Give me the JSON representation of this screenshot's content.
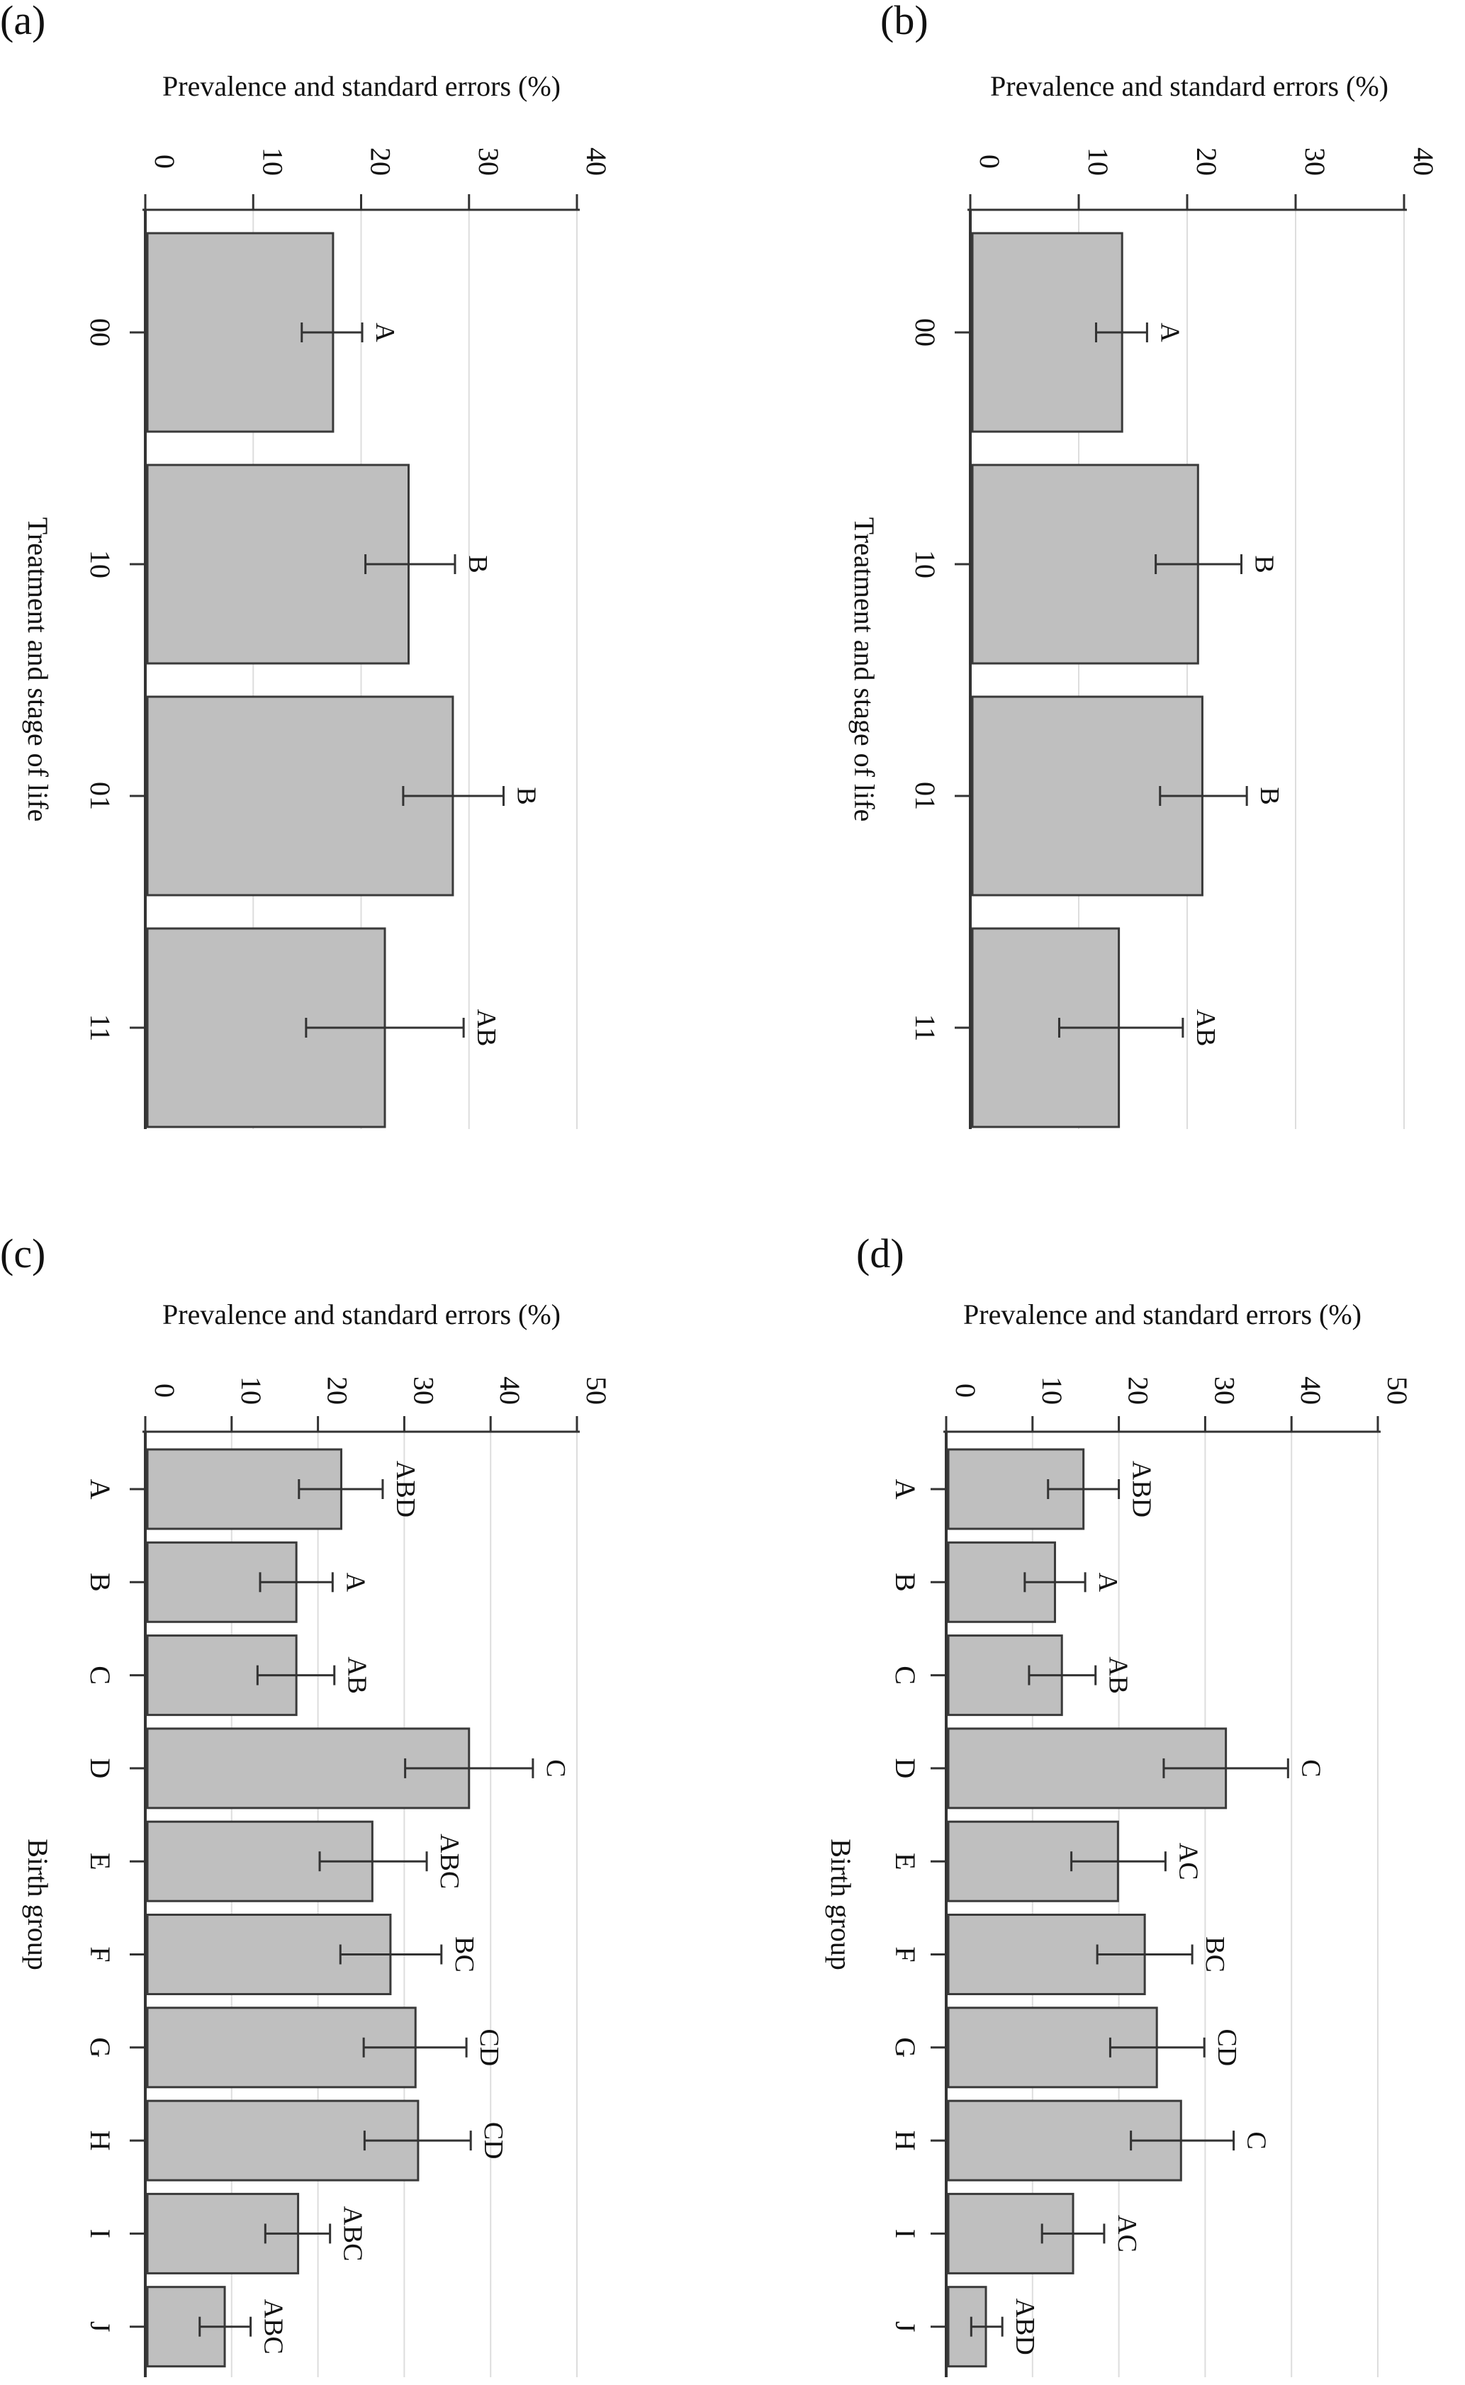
{
  "chart_data": [
    {
      "type": "bar",
      "panel_label": "(a)",
      "title": "Prevalence and standard errors (%)",
      "xlabel": "Treatment and stage of life",
      "ylabel": "Prevalence and standard errors (%)",
      "ylim": [
        0,
        40
      ],
      "ticks": [
        "0",
        "10",
        "20",
        "30",
        "40"
      ],
      "tick_values": [
        0,
        10,
        20,
        30,
        40
      ],
      "categories": [
        "00",
        "10",
        "01",
        "11"
      ],
      "values": [
        17.4,
        24.4,
        28.5,
        22.2
      ],
      "err_low": [
        14.5,
        20.4,
        23.9,
        14.9
      ],
      "err_high": [
        20.1,
        28.7,
        33.2,
        29.5
      ],
      "letters": [
        "A",
        "B",
        "B",
        "AB"
      ],
      "grid": true,
      "orientation": "rotated 90° clockwise"
    },
    {
      "type": "bar",
      "panel_label": "(b)",
      "title": "Prevalence and standard errors (%)",
      "xlabel": "Treatment and stage of life",
      "ylabel": "Prevalence and standard errors (%)",
      "ylim": [
        0,
        40
      ],
      "ticks": [
        "0",
        "10",
        "20",
        "30",
        "40"
      ],
      "tick_values": [
        0,
        10,
        20,
        30,
        40
      ],
      "categories": [
        "00",
        "10",
        "01",
        "11"
      ],
      "values": [
        14.0,
        21.0,
        21.4,
        13.7
      ],
      "err_low": [
        11.6,
        17.1,
        17.5,
        8.2
      ],
      "err_high": [
        16.3,
        25.0,
        25.5,
        19.6
      ],
      "letters": [
        "A",
        "B",
        "B",
        "AB"
      ],
      "grid": true,
      "orientation": "rotated 90° clockwise"
    },
    {
      "type": "bar",
      "panel_label": "(c)",
      "title": "Prevalence and standard errors (%)",
      "xlabel": "Birth group",
      "ylabel": "Prevalence and standard errors (%)",
      "ylim": [
        0,
        50
      ],
      "ticks": [
        "0",
        "10",
        "20",
        "30",
        "40",
        "50"
      ],
      "tick_values": [
        0,
        10,
        20,
        30,
        40,
        50
      ],
      "categories": [
        "A",
        "B",
        "C",
        "D",
        "E",
        "F",
        "G",
        "H",
        "I",
        "J"
      ],
      "values": [
        22.7,
        17.5,
        17.5,
        37.5,
        26.3,
        28.4,
        31.3,
        31.6,
        17.7,
        9.2
      ],
      "err_low": [
        17.8,
        13.3,
        13.0,
        30.1,
        20.2,
        22.6,
        25.3,
        25.4,
        13.9,
        6.3
      ],
      "err_high": [
        27.5,
        21.7,
        21.9,
        44.9,
        32.6,
        34.3,
        37.2,
        37.7,
        21.4,
        12.2
      ],
      "letters": [
        "ABD",
        "A",
        "AB",
        "C",
        "ABC",
        "BC",
        "CD",
        "CD",
        "ABC",
        "ABC"
      ],
      "grid": true,
      "orientation": "rotated 90° clockwise"
    },
    {
      "type": "bar",
      "panel_label": "(d)",
      "title": "Prevalence and standard errors (%)",
      "xlabel": "Birth group",
      "ylabel": "Prevalence and standard errors (%)",
      "ylim": [
        0,
        50
      ],
      "ticks": [
        "0",
        "10",
        "20",
        "30",
        "40",
        "50"
      ],
      "tick_values": [
        0,
        10,
        20,
        30,
        40,
        50
      ],
      "categories": [
        "A",
        "B",
        "C",
        "D",
        "E",
        "F",
        "G",
        "H",
        "I",
        "J"
      ],
      "values": [
        15.9,
        12.6,
        13.4,
        32.4,
        19.9,
        23.0,
        24.4,
        27.2,
        14.7,
        4.6
      ],
      "err_low": [
        11.8,
        9.1,
        9.6,
        25.2,
        14.5,
        17.5,
        19.0,
        21.4,
        11.1,
        2.9
      ],
      "err_high": [
        20.0,
        16.1,
        17.3,
        39.6,
        25.4,
        28.5,
        29.9,
        33.3,
        18.3,
        6.5
      ],
      "letters": [
        "ABD",
        "A",
        "AB",
        "C",
        "AC",
        "BC",
        "CD",
        "C",
        "AC",
        "ABD"
      ],
      "grid": true,
      "orientation": "rotated 90° clockwise"
    }
  ],
  "colors": {
    "bar_fill": "#bfbfbf",
    "bar_stroke": "#3a3a3a",
    "axis": "#333333",
    "grid": "#dddddd",
    "text": "#111111"
  }
}
